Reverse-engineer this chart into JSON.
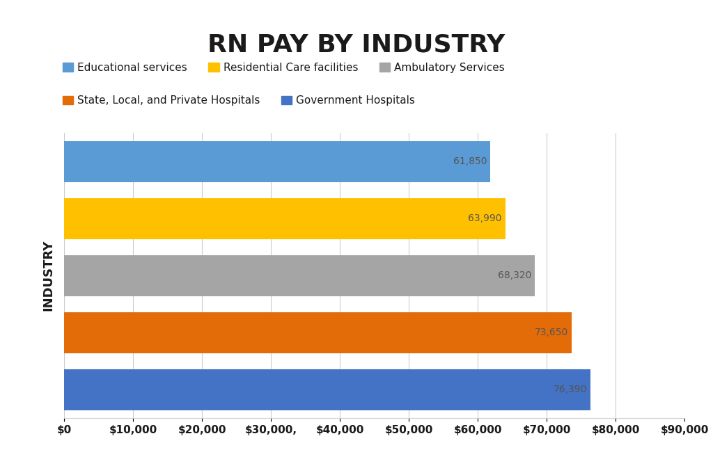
{
  "title": "RN PAY BY INDUSTRY",
  "categories_display_order": [
    "Educational services",
    "Residential Care facilities",
    "Ambulatory Services",
    "State, Local, and Private Hospitals",
    "Government Hospitals"
  ],
  "values_display_order": [
    61850,
    63990,
    68320,
    73650,
    76390
  ],
  "colors_display_order": [
    "#5b9bd5",
    "#ffc000",
    "#a5a5a5",
    "#e36c09",
    "#4472c4"
  ],
  "bar_labels_display_order": [
    "61,850",
    "63,990",
    "68,320",
    "73,650",
    "76,390"
  ],
  "ylabel": "INDUSTRY",
  "xlim": [
    0,
    90000
  ],
  "xticks": [
    0,
    10000,
    20000,
    30000,
    40000,
    50000,
    60000,
    70000,
    80000,
    90000
  ],
  "xtick_labels": [
    "$0",
    "$10,000",
    "$20,000",
    "$30,000,",
    "$40,000",
    "$50,000",
    "$60,000",
    "$70,000",
    "$80,000",
    "$90,000"
  ],
  "background_color": "#ffffff",
  "title_fontsize": 26,
  "bar_label_fontsize": 10,
  "legend_row1": [
    {
      "label": "Educational services",
      "color": "#5b9bd5"
    },
    {
      "label": "Residential Care facilities",
      "color": "#ffc000"
    },
    {
      "label": "Ambulatory Services",
      "color": "#a5a5a5"
    }
  ],
  "legend_row2": [
    {
      "label": "State, Local, and Private Hospitals",
      "color": "#e36c09"
    },
    {
      "label": "Government Hospitals",
      "color": "#4472c4"
    }
  ]
}
